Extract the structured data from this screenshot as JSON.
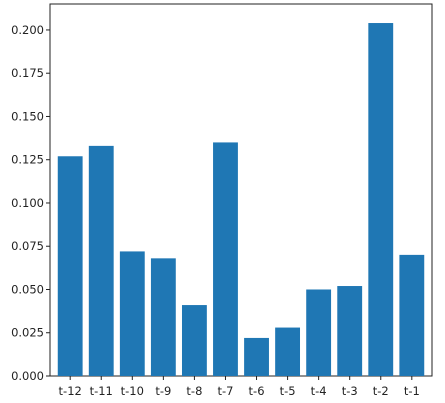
{
  "chart_data": {
    "type": "bar",
    "categories": [
      "t-12",
      "t-11",
      "t-10",
      "t-9",
      "t-8",
      "t-7",
      "t-6",
      "t-5",
      "t-4",
      "t-3",
      "t-2",
      "t-1"
    ],
    "values": [
      0.127,
      0.133,
      0.072,
      0.068,
      0.041,
      0.135,
      0.022,
      0.028,
      0.05,
      0.052,
      0.204,
      0.07
    ],
    "yticks": [
      "0.000",
      "0.025",
      "0.050",
      "0.075",
      "0.100",
      "0.125",
      "0.150",
      "0.175",
      "0.200"
    ],
    "ylim": [
      0,
      0.215
    ],
    "grid": false,
    "bar_color": "#1f77b4",
    "title": "",
    "xlabel": "",
    "ylabel": ""
  }
}
